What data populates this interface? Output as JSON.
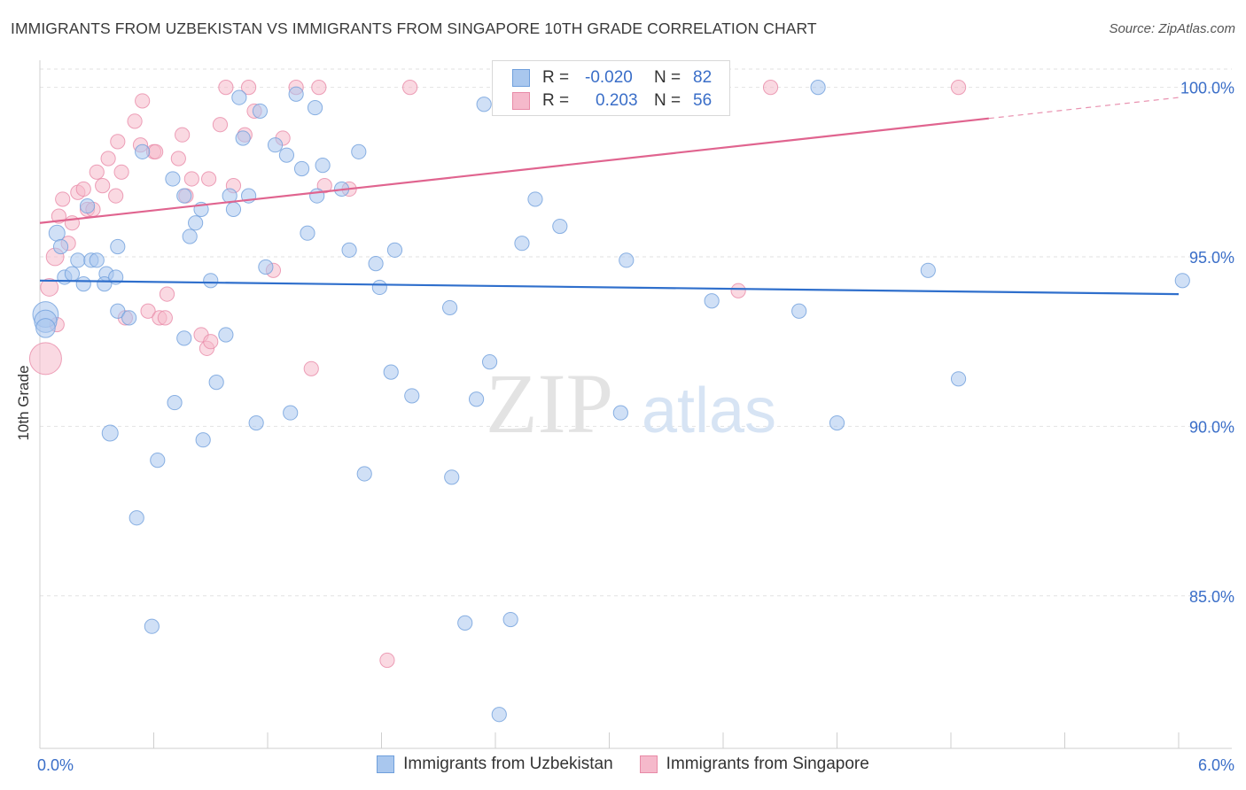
{
  "title": "IMMIGRANTS FROM UZBEKISTAN VS IMMIGRANTS FROM SINGAPORE 10TH GRADE CORRELATION CHART",
  "source": "Source: ZipAtlas.com",
  "watermark": {
    "zip": "ZIP",
    "atlas": "atlas"
  },
  "legend": {
    "rows": [
      {
        "r_label": "R =",
        "r_value": "-0.020",
        "n_label": "N =",
        "n_value": "82"
      },
      {
        "r_label": "R =",
        "r_value": "0.203",
        "n_label": "N =",
        "n_value": "56"
      }
    ]
  },
  "bottom_legend": {
    "series_a": "Immigrants from Uzbekistan",
    "series_b": "Immigrants from Singapore"
  },
  "colors": {
    "blue_fill": "#a9c7ee",
    "blue_stroke": "#6f9fdc",
    "blue_line": "#2f6fcc",
    "pink_fill": "#f5b9cb",
    "pink_stroke": "#e88aa7",
    "pink_line": "#e0648f",
    "tick_text": "#3a6ec8"
  },
  "chart_data": {
    "type": "scatter",
    "title": "IMMIGRANTS FROM UZBEKISTAN VS IMMIGRANTS FROM SINGAPORE 10TH GRADE CORRELATION CHART",
    "xlabel": "",
    "ylabel": "10th Grade",
    "xlim": [
      0,
      6
    ],
    "ylim": [
      80.5,
      100.8
    ],
    "x_tick_labels": [
      {
        "value": 0,
        "label": "0.0%"
      },
      {
        "value": 6,
        "label": "6.0%"
      }
    ],
    "y_tick_labels": [
      {
        "value": 100,
        "label": "100.0%"
      },
      {
        "value": 95,
        "label": "95.0%"
      },
      {
        "value": 90,
        "label": "90.0%"
      },
      {
        "value": 85,
        "label": "85.0%"
      }
    ],
    "series": [
      {
        "name": "Immigrants from Uzbekistan",
        "color": "#a9c7ee",
        "r": -0.02,
        "n": 82,
        "trend": {
          "x1": 0,
          "y1": 94.3,
          "x2": 6,
          "y2": 93.9,
          "dashed_from": null
        },
        "points": [
          [
            0.03,
            93.3,
            1.6
          ],
          [
            0.03,
            93.1,
            1.4
          ],
          [
            0.03,
            92.9,
            1.2
          ],
          [
            0.09,
            95.7,
            1.0
          ],
          [
            0.11,
            95.3,
            0.9
          ],
          [
            0.13,
            94.4,
            0.9
          ],
          [
            0.17,
            94.5,
            0.9
          ],
          [
            0.2,
            94.9,
            0.9
          ],
          [
            0.23,
            94.2,
            0.9
          ],
          [
            0.25,
            96.5,
            0.9
          ],
          [
            0.27,
            94.9,
            0.9
          ],
          [
            0.3,
            94.9,
            0.9
          ],
          [
            0.35,
            94.5,
            0.9
          ],
          [
            0.34,
            94.2,
            0.9
          ],
          [
            0.4,
            94.4,
            0.9
          ],
          [
            0.41,
            93.4,
            0.9
          ],
          [
            0.37,
            89.8,
            1.0
          ],
          [
            0.41,
            95.3,
            0.9
          ],
          [
            0.47,
            93.2,
            0.9
          ],
          [
            0.51,
            87.3,
            0.9
          ],
          [
            0.54,
            98.1,
            0.9
          ],
          [
            0.59,
            84.1,
            0.9
          ],
          [
            0.62,
            89.0,
            0.9
          ],
          [
            0.7,
            97.3,
            0.9
          ],
          [
            0.71,
            90.7,
            0.9
          ],
          [
            0.76,
            96.8,
            0.9
          ],
          [
            0.76,
            92.6,
            0.9
          ],
          [
            0.79,
            95.6,
            0.9
          ],
          [
            0.82,
            96.0,
            0.9
          ],
          [
            0.85,
            96.4,
            0.9
          ],
          [
            0.86,
            89.6,
            0.9
          ],
          [
            0.9,
            94.3,
            0.9
          ],
          [
            0.93,
            91.3,
            0.9
          ],
          [
            0.98,
            92.7,
            0.9
          ],
          [
            1.0,
            96.8,
            0.9
          ],
          [
            1.02,
            96.4,
            0.9
          ],
          [
            1.05,
            99.7,
            0.9
          ],
          [
            1.07,
            98.5,
            0.9
          ],
          [
            1.1,
            96.8,
            0.9
          ],
          [
            1.14,
            90.1,
            0.9
          ],
          [
            1.16,
            99.3,
            0.9
          ],
          [
            1.19,
            94.7,
            0.9
          ],
          [
            1.24,
            98.3,
            0.9
          ],
          [
            1.3,
            98.0,
            0.9
          ],
          [
            1.32,
            90.4,
            0.9
          ],
          [
            1.35,
            99.8,
            0.9
          ],
          [
            1.38,
            97.6,
            0.9
          ],
          [
            1.41,
            95.7,
            0.9
          ],
          [
            1.45,
            99.4,
            0.9
          ],
          [
            1.46,
            96.8,
            0.9
          ],
          [
            1.49,
            97.7,
            0.9
          ],
          [
            1.59,
            97.0,
            0.9
          ],
          [
            1.63,
            95.2,
            0.9
          ],
          [
            1.68,
            98.1,
            0.9
          ],
          [
            1.71,
            88.6,
            0.9
          ],
          [
            1.77,
            94.8,
            0.9
          ],
          [
            1.79,
            94.1,
            0.9
          ],
          [
            1.85,
            91.6,
            0.9
          ],
          [
            1.87,
            95.2,
            0.9
          ],
          [
            1.96,
            90.9,
            0.9
          ],
          [
            2.16,
            93.5,
            0.9
          ],
          [
            2.17,
            88.5,
            0.9
          ],
          [
            2.24,
            84.2,
            0.9
          ],
          [
            2.3,
            90.8,
            0.9
          ],
          [
            2.34,
            99.5,
            0.9
          ],
          [
            2.37,
            91.9,
            0.9
          ],
          [
            2.42,
            81.5,
            0.9
          ],
          [
            2.48,
            84.3,
            0.9
          ],
          [
            2.54,
            95.4,
            0.9
          ],
          [
            2.61,
            96.7,
            0.9
          ],
          [
            2.74,
            95.9,
            0.9
          ],
          [
            2.93,
            99.4,
            0.9
          ],
          [
            3.06,
            90.4,
            0.9
          ],
          [
            3.09,
            94.9,
            0.9
          ],
          [
            3.13,
            100.0,
            0.9
          ],
          [
            3.54,
            93.7,
            0.9
          ],
          [
            4.0,
            93.4,
            0.9
          ],
          [
            4.1,
            100.0,
            0.9
          ],
          [
            4.2,
            90.1,
            0.9
          ],
          [
            4.68,
            94.6,
            0.9
          ],
          [
            4.84,
            91.4,
            0.9
          ],
          [
            6.02,
            94.3,
            0.9
          ]
        ]
      },
      {
        "name": "Immigrants from Singapore",
        "color": "#f5b9cb",
        "r": 0.203,
        "n": 56,
        "trend": {
          "x1": 0,
          "y1": 96.0,
          "x2": 6,
          "y2": 99.7,
          "dashed_from": 5.0
        },
        "points": [
          [
            0.03,
            92.0,
            2.0
          ],
          [
            0.05,
            94.1,
            1.1
          ],
          [
            0.08,
            95.0,
            1.1
          ],
          [
            0.09,
            93.0,
            0.9
          ],
          [
            0.1,
            96.2,
            0.9
          ],
          [
            0.12,
            96.7,
            0.9
          ],
          [
            0.15,
            95.4,
            0.9
          ],
          [
            0.17,
            96.0,
            0.9
          ],
          [
            0.2,
            96.9,
            0.9
          ],
          [
            0.23,
            97.0,
            0.9
          ],
          [
            0.25,
            96.4,
            0.9
          ],
          [
            0.28,
            96.4,
            0.9
          ],
          [
            0.3,
            97.5,
            0.9
          ],
          [
            0.33,
            97.1,
            0.9
          ],
          [
            0.36,
            97.9,
            0.9
          ],
          [
            0.4,
            96.8,
            0.9
          ],
          [
            0.41,
            98.4,
            0.9
          ],
          [
            0.43,
            97.5,
            0.9
          ],
          [
            0.45,
            93.2,
            0.9
          ],
          [
            0.5,
            99.0,
            0.9
          ],
          [
            0.53,
            98.3,
            0.9
          ],
          [
            0.54,
            99.6,
            0.9
          ],
          [
            0.57,
            93.4,
            0.9
          ],
          [
            0.6,
            98.1,
            0.9
          ],
          [
            0.61,
            98.1,
            0.9
          ],
          [
            0.63,
            93.2,
            0.9
          ],
          [
            0.66,
            93.2,
            0.9
          ],
          [
            0.67,
            93.9,
            0.9
          ],
          [
            0.73,
            97.9,
            0.9
          ],
          [
            0.75,
            98.6,
            0.9
          ],
          [
            0.77,
            96.8,
            0.9
          ],
          [
            0.8,
            97.3,
            0.9
          ],
          [
            0.85,
            92.7,
            0.9
          ],
          [
            0.88,
            92.3,
            0.9
          ],
          [
            0.89,
            97.3,
            0.9
          ],
          [
            0.9,
            92.5,
            0.9
          ],
          [
            0.95,
            98.9,
            0.9
          ],
          [
            0.98,
            100.0,
            0.9
          ],
          [
            1.02,
            97.1,
            0.9
          ],
          [
            1.08,
            98.6,
            0.9
          ],
          [
            1.1,
            100.0,
            0.9
          ],
          [
            1.13,
            99.3,
            0.9
          ],
          [
            1.23,
            94.6,
            0.9
          ],
          [
            1.28,
            98.5,
            0.9
          ],
          [
            1.35,
            100.0,
            0.9
          ],
          [
            1.43,
            91.7,
            0.9
          ],
          [
            1.47,
            100.0,
            0.9
          ],
          [
            1.5,
            97.1,
            0.9
          ],
          [
            1.63,
            97.0,
            0.9
          ],
          [
            1.83,
            83.1,
            0.9
          ],
          [
            1.95,
            100.0,
            0.9
          ],
          [
            2.7,
            100.0,
            0.9
          ],
          [
            3.28,
            100.0,
            0.9
          ],
          [
            3.68,
            94.0,
            0.9
          ],
          [
            3.85,
            100.0,
            0.9
          ],
          [
            4.84,
            100.0,
            0.9
          ]
        ]
      }
    ]
  }
}
